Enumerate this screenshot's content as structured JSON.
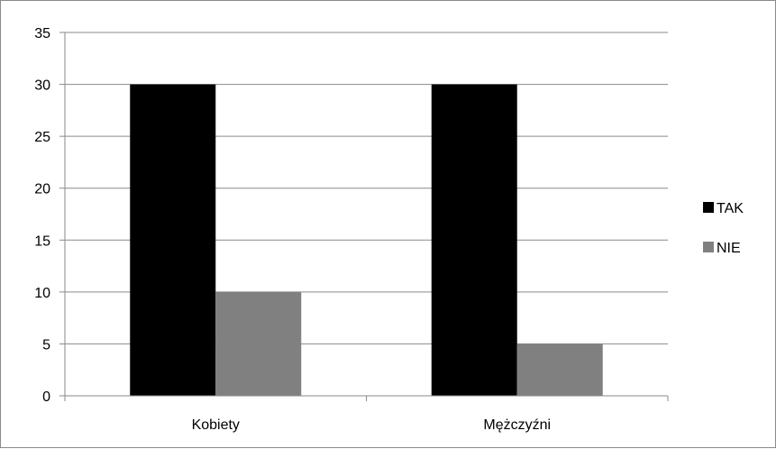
{
  "chart_data": {
    "type": "bar",
    "categories": [
      "Kobiety",
      "Mężczyźni"
    ],
    "series": [
      {
        "name": "TAK",
        "values": [
          30,
          30
        ],
        "color": "#000000"
      },
      {
        "name": "NIE",
        "values": [
          10,
          5
        ],
        "color": "#808080"
      }
    ],
    "yticks": [
      "0",
      "5",
      "10",
      "15",
      "20",
      "25",
      "30",
      "35"
    ],
    "ylim": [
      0,
      35
    ],
    "grid": true,
    "legend_position": "right",
    "gridline_color": "#8a8a8a"
  }
}
